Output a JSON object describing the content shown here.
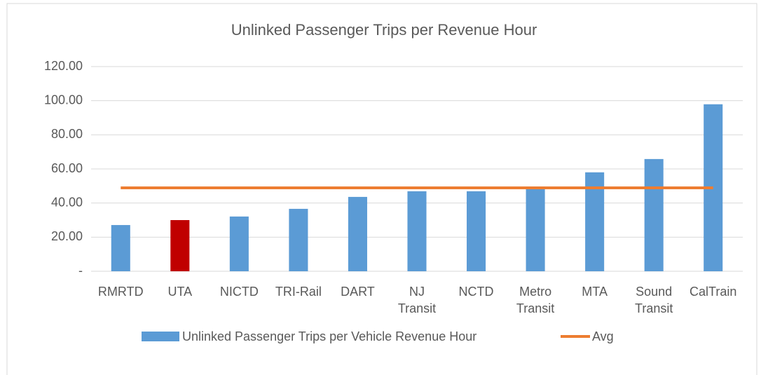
{
  "chart_data": {
    "type": "bar",
    "title": "Unlinked Passenger Trips per Revenue Hour",
    "categories": [
      "RMRTD",
      "UTA",
      "NICTD",
      "TRI-Rail",
      "DART",
      "NJ Transit",
      "NCTD",
      "Metro Transit",
      "MTA",
      "Sound Transit",
      "CalTrain"
    ],
    "series": [
      {
        "name": "Unlinked Passenger Trips per Vehicle Revenue Hour",
        "type": "bar",
        "color": "#5b9bd5",
        "point_colors": [
          "#5b9bd5",
          "#c00000",
          "#5b9bd5",
          "#5b9bd5",
          "#5b9bd5",
          "#5b9bd5",
          "#5b9bd5",
          "#5b9bd5",
          "#5b9bd5",
          "#5b9bd5",
          "#5b9bd5"
        ],
        "values": [
          27.1,
          30.0,
          32.1,
          36.6,
          43.6,
          46.9,
          46.9,
          49.4,
          58.0,
          65.8,
          97.9
        ]
      },
      {
        "name": "Avg",
        "type": "line",
        "color": "#ed7d31",
        "values": [
          48.9,
          48.9,
          48.9,
          48.9,
          48.9,
          48.9,
          48.9,
          48.9,
          48.9,
          48.9,
          48.9
        ]
      }
    ],
    "ylim": [
      0,
      120
    ],
    "yticks": [
      {
        "value": 0,
        "label": "-"
      },
      {
        "value": 20,
        "label": "20.00"
      },
      {
        "value": 40,
        "label": "40.00"
      },
      {
        "value": 60,
        "label": "60.00"
      },
      {
        "value": 80,
        "label": "80.00"
      },
      {
        "value": 100,
        "label": "100.00"
      },
      {
        "value": 120,
        "label": "120.00"
      }
    ],
    "grid": true,
    "legend": "bottom"
  }
}
